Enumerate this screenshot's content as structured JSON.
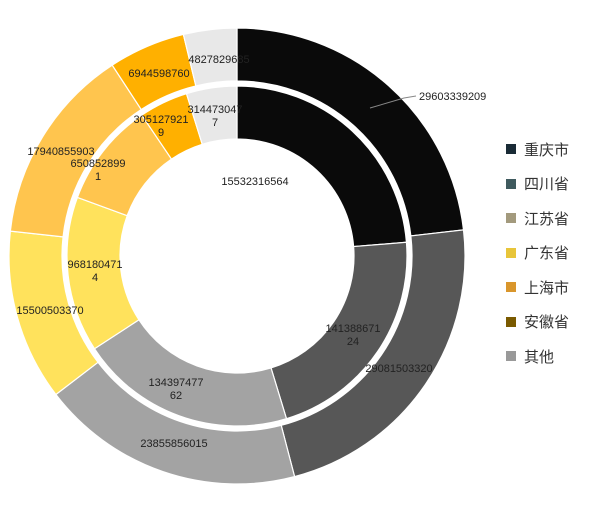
{
  "chart_data": {
    "type": "pie",
    "legend_position": "right",
    "series": [
      {
        "name": "inner",
        "values": [
          15532316564,
          14138867124,
          13439747762,
          9681804714,
          6508528991,
          3051279219,
          3144730477
        ]
      },
      {
        "name": "outer",
        "values": [
          29603339209,
          29081503320,
          23855856015,
          15500503370,
          17940855903,
          6944598760,
          4827829685
        ]
      }
    ],
    "categories": [
      "重庆市",
      "四川省",
      "江苏省",
      "广东省",
      "上海市",
      "安徽省",
      "其他"
    ],
    "inner_labels": [
      [
        "15532316564"
      ],
      [
        "141388671",
        "24"
      ],
      [
        "134397477",
        "62"
      ],
      [
        "968180471",
        "4"
      ],
      [
        "650852899",
        "1"
      ],
      [
        "305127921",
        "9"
      ],
      [
        "314473047",
        "7"
      ]
    ],
    "outer_labels": [
      "29603339209",
      "29081503320",
      "23855856015",
      "15500503370",
      "17940855903",
      "6944598760",
      "4827829685"
    ],
    "colors": [
      "#0a0a0a",
      "#575757",
      "#a3a3a3",
      "#ffe25c",
      "#ffc54e",
      "#ffb000",
      "#e8e8e8"
    ],
    "legend_colors": [
      "#1a2b36",
      "#3f5a5e",
      "#a39a7d",
      "#e8c53a",
      "#d9962c",
      "#7a5a00",
      "#999999"
    ]
  }
}
